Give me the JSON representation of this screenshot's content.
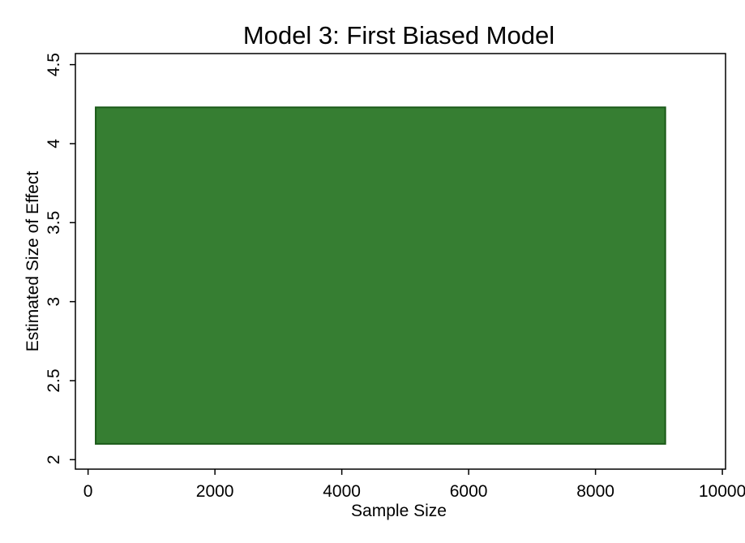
{
  "chart_data": {
    "type": "area",
    "title": "Model 3: First Biased Model",
    "xlabel": "Sample Size",
    "ylabel": "Estimated Size of Effect",
    "xlim": [
      -200,
      10050
    ],
    "ylim": [
      1.94,
      4.57
    ],
    "x_ticks": [
      0,
      2000,
      4000,
      6000,
      8000,
      10000
    ],
    "x_tick_labels": [
      "0",
      "2000",
      "4000",
      "6000",
      "8000",
      "10000"
    ],
    "y_ticks": [
      2,
      2.5,
      3,
      3.5,
      4,
      4.5
    ],
    "y_tick_labels": [
      "2",
      "2.5",
      "3",
      "3.5",
      "4",
      "4.5"
    ],
    "series": [
      {
        "x": [
          120,
          9100
        ],
        "y_low": [
          2.1,
          2.1
        ],
        "y_high": [
          4.23,
          4.23
        ],
        "color": "#367e32",
        "edge_color": "#1a5a18"
      }
    ],
    "grid": false,
    "background": "#ffffff",
    "plot_background": "#ffffff"
  }
}
